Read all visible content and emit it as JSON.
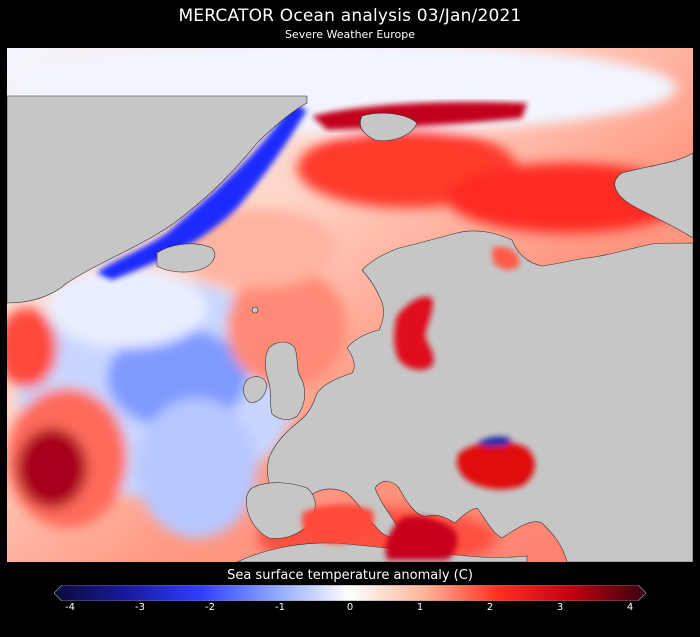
{
  "header": {
    "title": "MERCATOR Ocean analysis  03/Jan/2021",
    "subtitle": "Severe Weather Europe"
  },
  "map": {
    "region": "North Atlantic and Europe",
    "variable": "Sea surface temperature anomaly",
    "date": "03/Jan/2021",
    "land_color": "#c6c6c6",
    "border_color": "#333333"
  },
  "colorbar": {
    "label": "Sea surface temperature anomaly (C)",
    "min": -4,
    "max": 4,
    "ticks": [
      "-4",
      "-3",
      "-2",
      "-1",
      "0",
      "1",
      "2",
      "3",
      "4"
    ],
    "colors": [
      "#0a0a3a",
      "#1a1aa0",
      "#3040ff",
      "#8fa8ff",
      "#ffffff",
      "#ffb49a",
      "#ff3020",
      "#c00010",
      "#3a0010"
    ]
  }
}
